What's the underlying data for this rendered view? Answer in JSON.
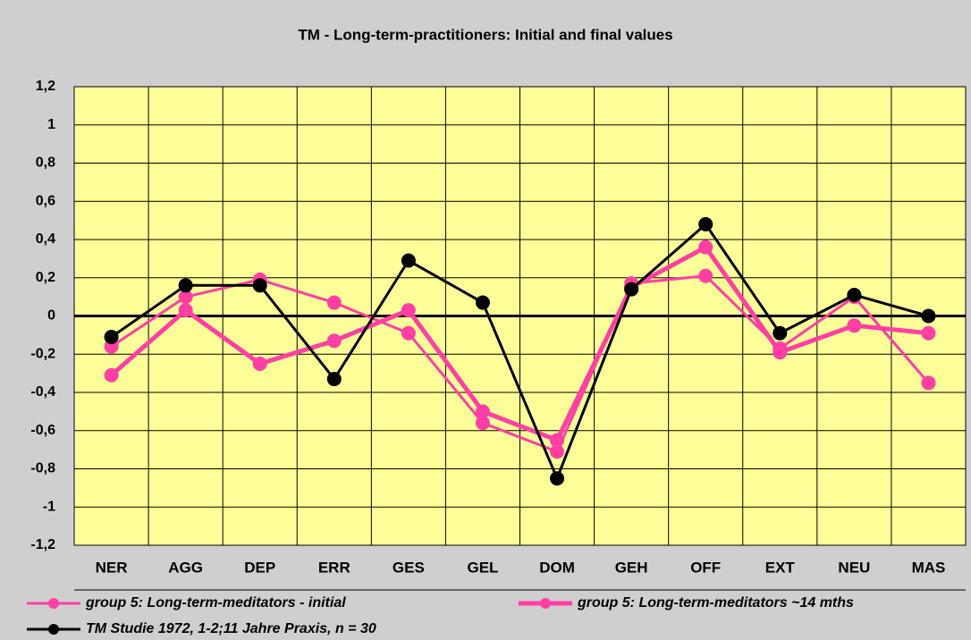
{
  "chart_data": {
    "type": "line",
    "title": "TM - Long-term-practitioners: Initial and final values",
    "categories": [
      "NER",
      "AGG",
      "DEP",
      "ERR",
      "GES",
      "GEL",
      "DOM",
      "GEH",
      "OFF",
      "EXT",
      "NEU",
      "MAS"
    ],
    "series": [
      {
        "name": "group 5: Long-term-meditators - initial",
        "color": "#ff3fa4",
        "values": [
          -0.16,
          0.1,
          0.19,
          0.07,
          -0.09,
          -0.56,
          -0.71,
          0.17,
          0.21,
          -0.17,
          0.1,
          -0.35
        ]
      },
      {
        "name": "group 5: Long-term-meditators ~14 mths",
        "color": "#ff3fa4",
        "values": [
          -0.31,
          0.03,
          -0.25,
          -0.13,
          0.03,
          -0.5,
          -0.65,
          0.15,
          0.36,
          -0.19,
          -0.05,
          -0.09
        ]
      },
      {
        "name": "TM Studie 1972, 1-2;11 Jahre Praxis, n = 30",
        "color": "#000000",
        "values": [
          -0.11,
          0.16,
          0.16,
          -0.33,
          0.29,
          0.07,
          -0.85,
          0.14,
          0.48,
          -0.09,
          0.11,
          0.0
        ]
      }
    ],
    "ylim": [
      -1.2,
      1.2
    ],
    "yticks": [
      {
        "value": -1.2,
        "label": "-1,2"
      },
      -1,
      {
        "value": -0.8,
        "label": "-0,8"
      },
      {
        "value": -0.6,
        "label": "-0,6"
      },
      {
        "value": -0.4,
        "label": "-0,4"
      },
      {
        "value": -0.2,
        "label": "-0,2"
      },
      0,
      {
        "value": 0.2,
        "label": "0,2"
      },
      {
        "value": 0.4,
        "label": "0,4"
      },
      {
        "value": 0.6,
        "label": "0,6"
      },
      {
        "value": 0.8,
        "label": "0,8"
      },
      1,
      {
        "value": 1.2,
        "label": "1,2"
      }
    ],
    "grid": true
  }
}
